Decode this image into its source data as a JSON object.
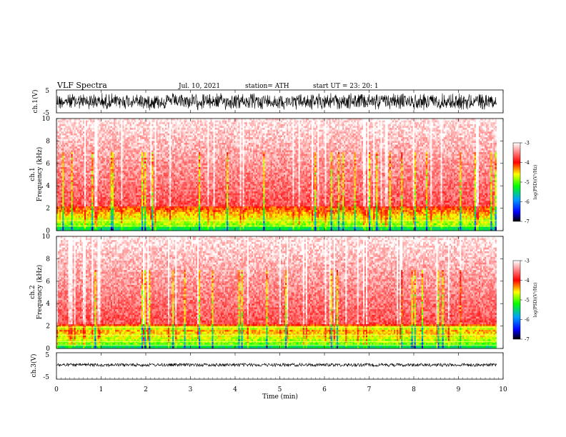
{
  "header": {
    "title": "VLF  Spectra",
    "date": "Jul.  10,  2021",
    "station": "station= ATH",
    "start": "start  UT  =    23: 20: 1"
  },
  "chart_data": [
    {
      "type": "line",
      "panel": "ch1-waveform",
      "ylabel": "ch.1(V)",
      "ylim": [
        -5,
        5
      ],
      "yticks": [
        "5",
        "-5"
      ],
      "xlim": [
        0,
        10
      ],
      "color": "#000000"
    },
    {
      "type": "heatmap",
      "panel": "ch1-spectrogram",
      "ylabel": "Frequency  (kHz)",
      "ylabel_channel": "ch.1",
      "ylim": [
        0,
        10
      ],
      "yticks": [
        "0",
        "2",
        "4",
        "6",
        "8",
        "10"
      ],
      "xlim": [
        0,
        10
      ],
      "colorbar": {
        "label": "log(PSD)(V²/Hz)",
        "ticks": [
          "-3",
          "-4",
          "-5",
          "-6",
          "-7"
        ],
        "range": [
          -7,
          -3
        ],
        "colors": [
          "#000000",
          "#0000ff",
          "#00a0ff",
          "#00ff00",
          "#ffff00",
          "#ff0000",
          "#ffffff"
        ]
      }
    },
    {
      "type": "heatmap",
      "panel": "ch2-spectrogram",
      "ylabel": "Frequency  (kHz)",
      "ylabel_channel": "ch.2",
      "ylim": [
        0,
        10
      ],
      "yticks": [
        "0",
        "2",
        "4",
        "6",
        "8",
        "10"
      ],
      "xlim": [
        0,
        10
      ],
      "colorbar": {
        "label": "log(PSD)(V²/Hz)",
        "ticks": [
          "-3",
          "-4",
          "-5",
          "-6",
          "-7"
        ],
        "range": [
          -7,
          -3
        ],
        "colors": [
          "#000000",
          "#0000ff",
          "#00a0ff",
          "#00ff00",
          "#ffff00",
          "#ff0000",
          "#ffffff"
        ]
      }
    },
    {
      "type": "line",
      "panel": "ch3-waveform",
      "ylabel": "ch.3(V)",
      "ylim": [
        -5,
        5
      ],
      "yticks": [
        "5",
        "-5"
      ],
      "xlim": [
        0,
        10
      ],
      "xlabel": "Time  (min)",
      "xticks": [
        "0",
        "1",
        "2",
        "3",
        "4",
        "5",
        "6",
        "7",
        "8",
        "9",
        "10"
      ],
      "color": "#000000"
    }
  ]
}
